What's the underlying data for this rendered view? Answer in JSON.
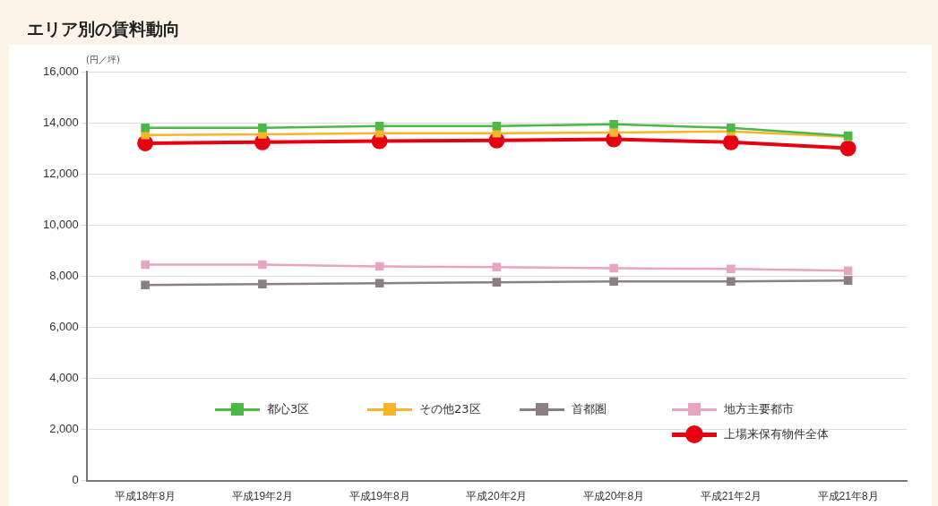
{
  "chart_data": {
    "type": "line",
    "title": "エリア別の賃料動向",
    "ylabel": "(円／坪)",
    "categories": [
      "平成18年8月",
      "平成19年2月",
      "平成19年8月",
      "平成20年2月",
      "平成20年8月",
      "平成21年2月",
      "平成21年8月"
    ],
    "series": [
      {
        "name": "都心3区",
        "color": "#4cb848",
        "marker": "square",
        "values": [
          13800,
          13800,
          13870,
          13870,
          13940,
          13800,
          13490
        ]
      },
      {
        "name": "その他23区",
        "color": "#f7b52c",
        "marker": "square",
        "values": [
          13520,
          13550,
          13590,
          13590,
          13620,
          13660,
          13450
        ]
      },
      {
        "name": "首都圏",
        "color": "#8c7f84",
        "marker": "square",
        "values": [
          7650,
          7690,
          7720,
          7760,
          7790,
          7790,
          7830
        ]
      },
      {
        "name": "地方主要都市",
        "color": "#e8a5bf",
        "marker": "square",
        "values": [
          8450,
          8450,
          8380,
          8350,
          8310,
          8280,
          8210
        ]
      },
      {
        "name": "上場来保有物件全体",
        "color": "#e60012",
        "marker": "circle",
        "values": [
          13200,
          13240,
          13280,
          13310,
          13350,
          13240,
          13000
        ]
      }
    ],
    "ylim": [
      0,
      16000
    ],
    "yticks": [
      0,
      {
        "value": 2000,
        "label": "2,000"
      },
      {
        "value": 4000,
        "label": "4,000"
      },
      {
        "value": 6000,
        "label": "6,000"
      },
      {
        "value": 8000,
        "label": "8,000"
      },
      {
        "value": 10000,
        "label": "10,000"
      },
      {
        "value": 12000,
        "label": "12,000"
      },
      {
        "value": 14000,
        "label": "14,000"
      },
      {
        "value": 16000,
        "label": "16,000"
      }
    ],
    "grid": "y",
    "legend": "bottom"
  }
}
